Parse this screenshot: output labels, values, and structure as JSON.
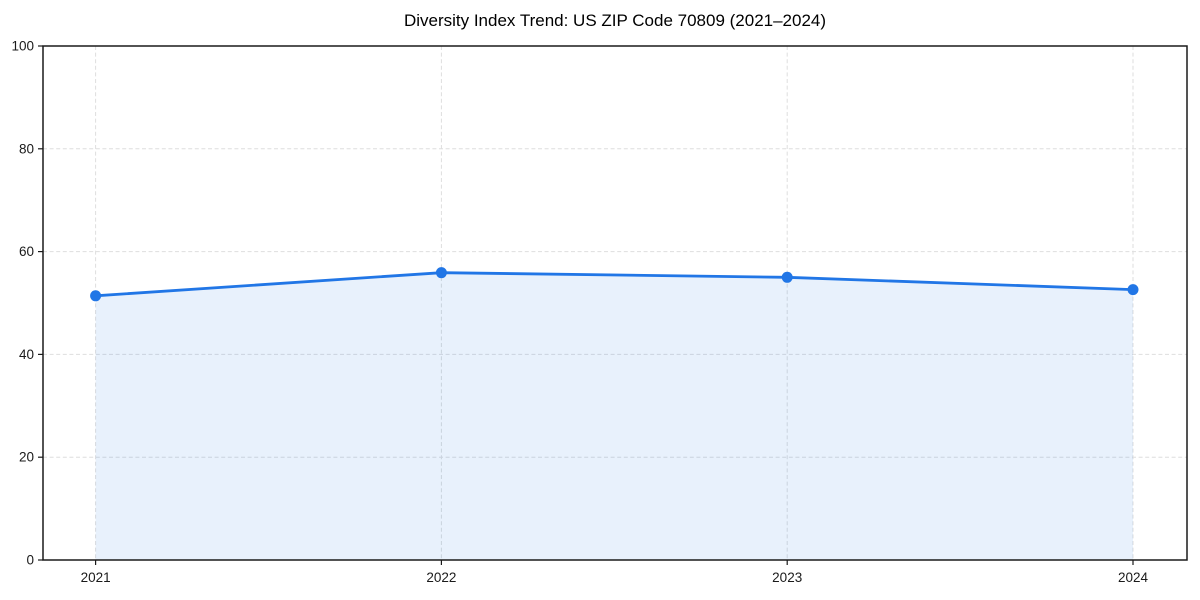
{
  "chart_data": {
    "type": "area",
    "title": "Diversity Index Trend: US ZIP Code 70809 (2021–2024)",
    "xlabel": "",
    "ylabel": "",
    "x": [
      "2021",
      "2022",
      "2023",
      "2024"
    ],
    "series": [
      {
        "name": "Diversity Index",
        "values": [
          51.4,
          55.9,
          55.0,
          52.6
        ]
      }
    ],
    "ylim": [
      0,
      100
    ],
    "yticks": [
      0,
      20,
      40,
      60,
      80,
      100
    ],
    "grid": "dashed-both-axes",
    "legend": "none",
    "marker": "circle",
    "colors": {
      "line": "#2176e6",
      "marker": "#2176e6",
      "fill": "#2176e6",
      "fill_opacity": 0.1,
      "grid": "#dedede",
      "spine": "#1a1a1a",
      "tick": "#1a1a1a",
      "tick_label": "#1a1a1a",
      "title": "#000000",
      "background": "#ffffff"
    }
  }
}
